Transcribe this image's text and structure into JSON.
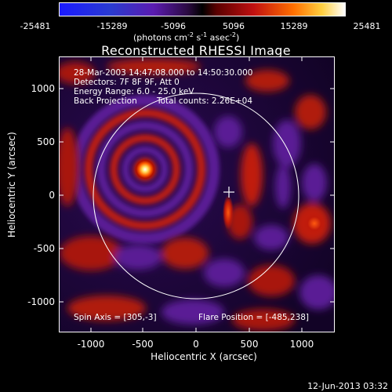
{
  "colorbar": {
    "ticks": [
      "-25481",
      "-15289",
      "-5096",
      "5096",
      "15289",
      "25481"
    ],
    "unit_prefix": "(photons cm",
    "unit_exp1": "-2",
    "unit_mid": " s",
    "unit_exp2": "-1",
    "unit_mid2": " asec",
    "unit_exp3": "-2",
    "unit_suffix": ")"
  },
  "title": "Reconstructed RHESSI Image",
  "info": {
    "time": "28-Mar-2003 14:47:08.000 to 14:50:30.000",
    "detectors": "Detectors: 7F 8F 9F, Att 0",
    "energy": "Energy Range: 6.0 - 25.0 keV",
    "method": "Back Projection",
    "counts": "Total counts: 2.26E+04",
    "spin_axis": "Spin Axis = [305,-3]",
    "flare_position": "Flare Position = [-485,238]"
  },
  "axes": {
    "xlabel": "Heliocentric X (arcsec)",
    "ylabel": "Heliocentric Y (arcsec)",
    "xticks": [
      "-1000",
      "-500",
      "0",
      "500",
      "1000"
    ],
    "yticks": [
      "1000",
      "500",
      "0",
      "-500",
      "-1000"
    ],
    "xlim": [
      -1300,
      1300
    ],
    "ylim": [
      -1300,
      1300
    ]
  },
  "footer": "12-Jun-2013 03:32"
}
